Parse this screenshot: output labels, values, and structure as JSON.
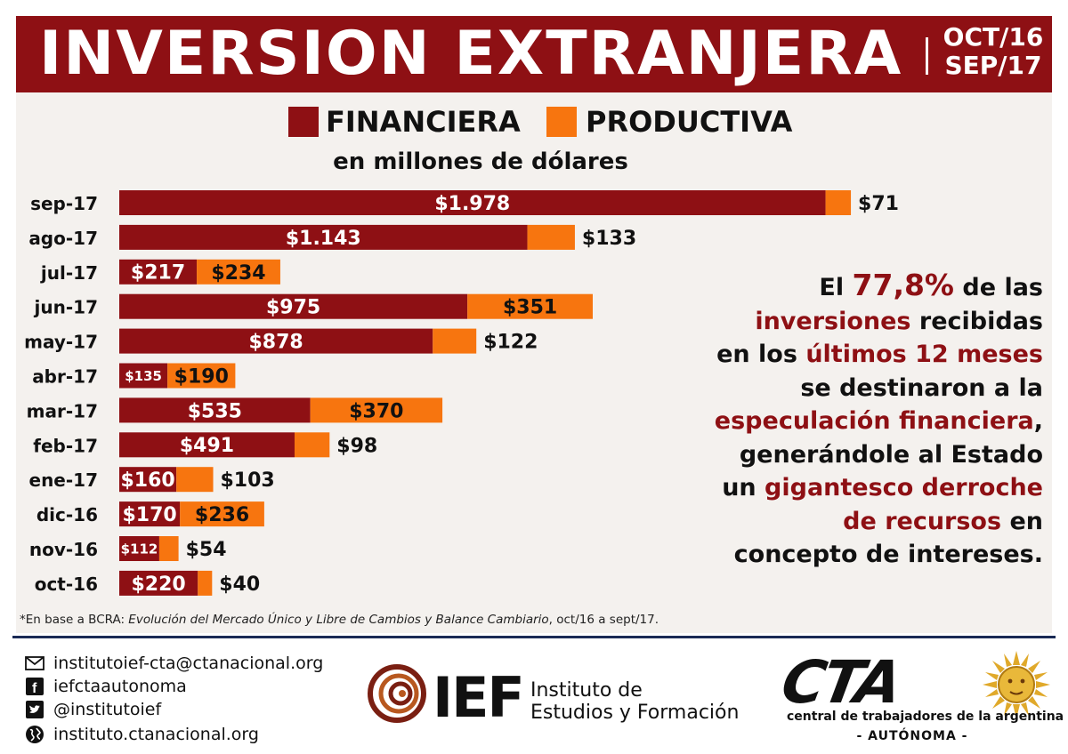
{
  "header": {
    "title": "INVERSION EXTRANJERA",
    "period_line1": "OCT/16",
    "period_line2": "SEP/17"
  },
  "legend": [
    {
      "label": "FINANCIERA",
      "color": "#8e1014"
    },
    {
      "label": "PRODUCTIVA",
      "color": "#f7750f"
    }
  ],
  "chart_data": {
    "type": "bar",
    "orientation": "horizontal",
    "stacked": true,
    "subtitle": "en millones de dólares",
    "categories": [
      "sep-17",
      "ago-17",
      "jul-17",
      "jun-17",
      "may-17",
      "abr-17",
      "mar-17",
      "feb-17",
      "ene-17",
      "dic-16",
      "nov-16",
      "oct-16"
    ],
    "series": [
      {
        "name": "FINANCIERA",
        "color": "#8e1014",
        "values": [
          1978,
          1143,
          217,
          975,
          878,
          135,
          535,
          491,
          160,
          170,
          112,
          220
        ],
        "labels": [
          "$1.978",
          "$1.143",
          "$217",
          "$975",
          "$878",
          "$135",
          "$535",
          "$491",
          "$160",
          "$170",
          "$112",
          "$220"
        ]
      },
      {
        "name": "PRODUCTIVA",
        "color": "#f7750f",
        "values": [
          71,
          133,
          234,
          351,
          122,
          190,
          370,
          98,
          103,
          236,
          54,
          40
        ],
        "labels": [
          "$71",
          "$133",
          "$234",
          "$351",
          "$122",
          "$190",
          "$370",
          "$98",
          "$103",
          "$236",
          "$54",
          "$40"
        ]
      }
    ],
    "xlim": [
      0,
      2100
    ],
    "grid": false,
    "legend_position": "top"
  },
  "annotation": {
    "t1": "El ",
    "pct": "77,8%",
    "t2": " de las",
    "t3": "inversiones",
    "t4": " recibidas",
    "t5": "en los ",
    "t6": "últimos 12 meses",
    "t7": "se destinaron a la",
    "t8": "especulación financiera",
    "t9": ",",
    "t10": "generándole al Estado",
    "t11": "un ",
    "t12": "gigantesco derroche",
    "t13": "de recursos",
    "t14": " en",
    "t15": "concepto de intereses."
  },
  "footnote": {
    "prefix": "*En base a BCRA: ",
    "italic": "Evolución del Mercado Único y Libre de Cambios y Balance Cambiario",
    "suffix": ", oct/16 a sept/17."
  },
  "contacts": [
    {
      "icon": "envelope-icon",
      "text": "institutoief-cta@ctanacional.org"
    },
    {
      "icon": "facebook-icon",
      "text": "iefctaautonoma"
    },
    {
      "icon": "twitter-icon",
      "text": "@institutoief"
    },
    {
      "icon": "globe-icon",
      "text": "instituto.ctanacional.org"
    }
  ],
  "ief": {
    "mark": "IEF",
    "line1": "Instituto de",
    "line2": "Estudios y Formación"
  },
  "cta": {
    "mark": "CTA",
    "subtitle": "central de trabajadores de la argentina",
    "autonoma": "- AUTÓNOMA -"
  }
}
